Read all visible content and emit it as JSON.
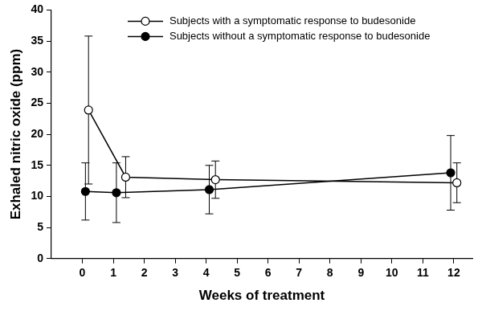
{
  "chart_data": {
    "type": "line",
    "x_label": "Weeks of treatment",
    "y_label": "Exhaled nitric oxide (ppm)",
    "xlim": [
      -1,
      12.6
    ],
    "xticks": [
      0,
      1,
      2,
      3,
      4,
      5,
      6,
      7,
      8,
      9,
      10,
      11,
      12
    ],
    "ylim": [
      0,
      40
    ],
    "yticks": [
      0,
      5,
      10,
      15,
      20,
      25,
      30,
      35,
      40
    ],
    "grid": false,
    "legend": "top",
    "series": [
      {
        "name": "Subjects with a symptomatic response to budesonide",
        "color": "#000000",
        "marker": "circle_open",
        "x": [
          0.2,
          1.4,
          4.3,
          12.1
        ],
        "values": [
          23.9,
          13.1,
          12.7,
          12.2
        ],
        "errors": [
          11.9,
          3.3,
          3.0,
          3.2
        ]
      },
      {
        "name": "Subjects without a symptomatic response to budesonide",
        "color": "#000000",
        "marker": "circle",
        "x": [
          0.1,
          1.1,
          4.1,
          11.9
        ],
        "values": [
          10.8,
          10.6,
          11.1,
          13.8
        ],
        "errors": [
          4.6,
          4.8,
          3.9,
          6.0
        ]
      }
    ]
  }
}
